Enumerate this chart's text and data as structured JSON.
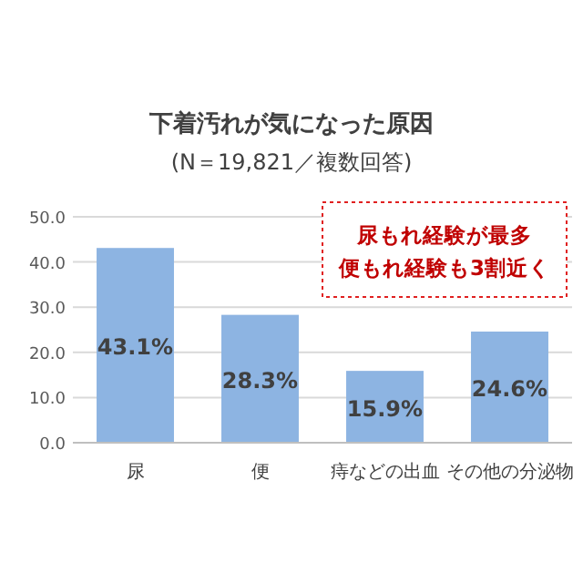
{
  "chart_data": {
    "type": "bar",
    "title": "下着汚れが気になった原因",
    "subtitle": "(N＝19,821／複数回答)",
    "categories": [
      "尿",
      "便",
      "痔などの出血",
      "その他の分泌物"
    ],
    "values": [
      43.1,
      28.3,
      15.9,
      24.6
    ],
    "value_labels": [
      "43.1%",
      "28.3%",
      "15.9%",
      "24.6%"
    ],
    "color": "#8db4e2",
    "ylim": [
      0,
      50
    ],
    "yticks": [
      {
        "value": 0,
        "label": "0.0"
      },
      {
        "value": 10,
        "label": "10.0"
      },
      {
        "value": 20,
        "label": "20.0"
      },
      {
        "value": 30,
        "label": "30.0"
      },
      {
        "value": 40,
        "label": "40.0"
      },
      {
        "value": 50,
        "label": "50.0"
      }
    ],
    "grid": "y",
    "annotations": [
      "尿もれ経験が最多",
      "便もれ経験も3割近く"
    ]
  }
}
